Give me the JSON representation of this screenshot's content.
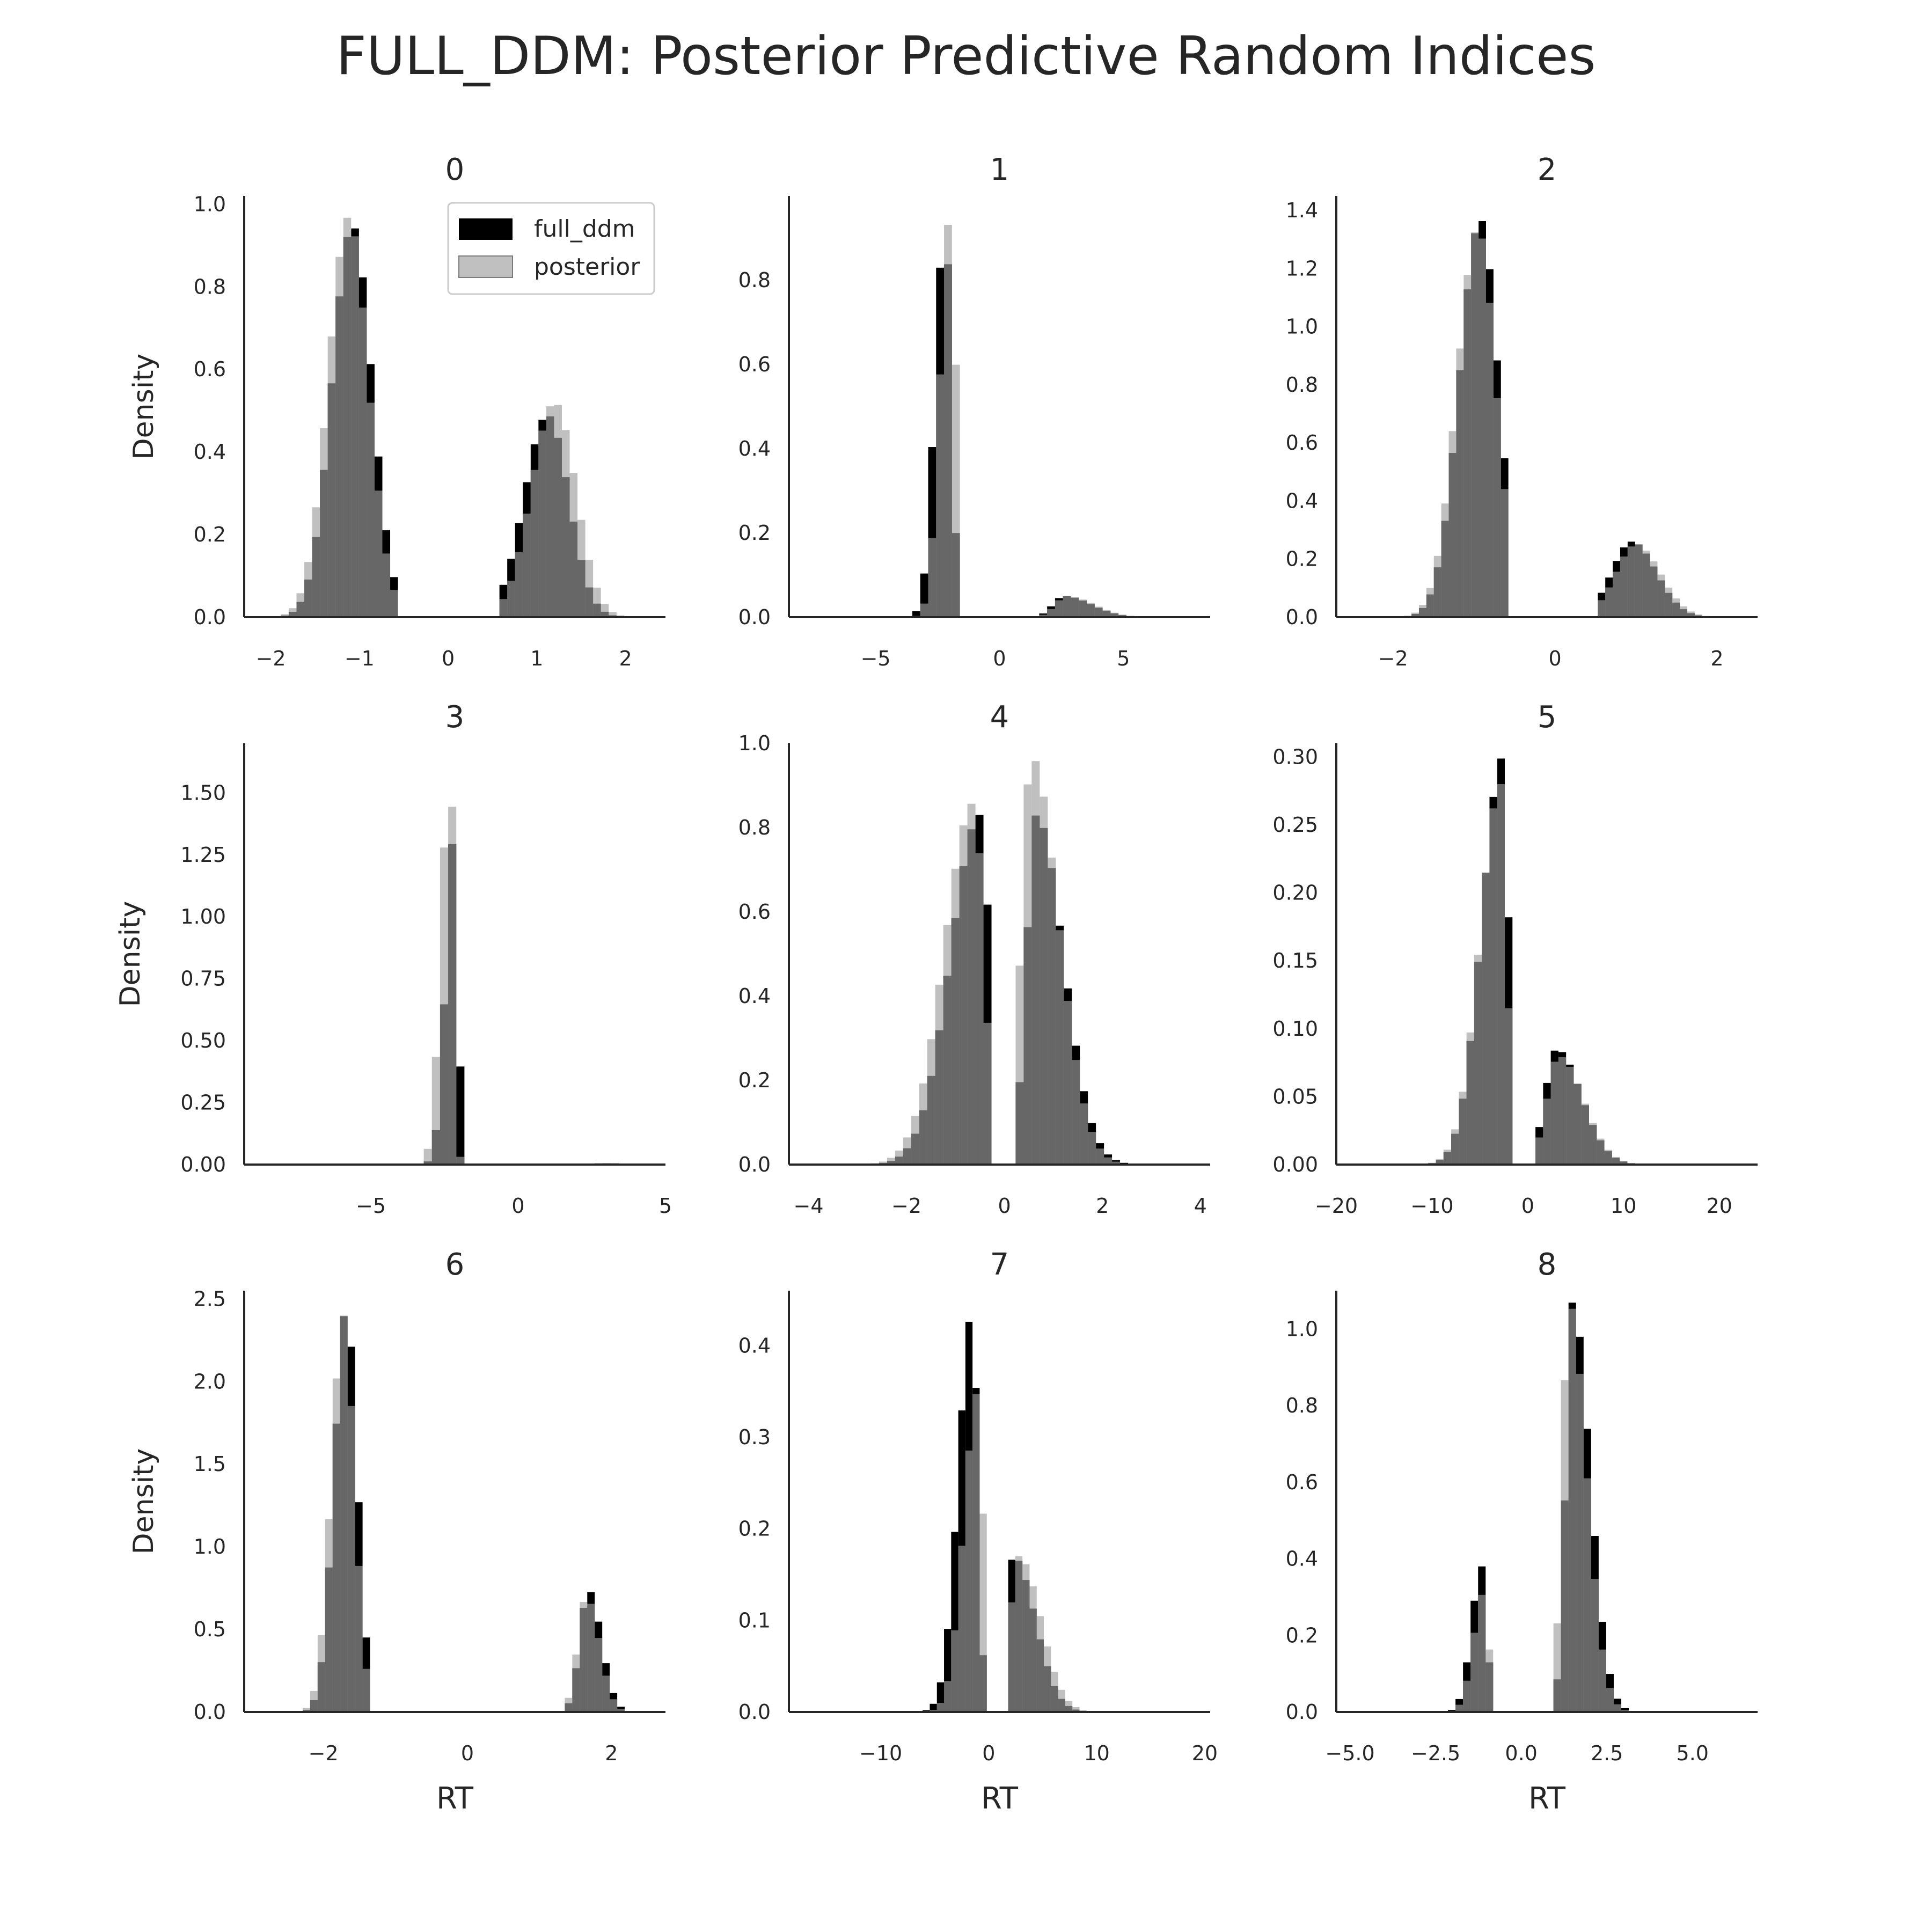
{
  "figure": {
    "title": "FULL_DDM: Posterior Predictive Random Indices",
    "legend": {
      "placement": "top-right of panel 0",
      "entries": [
        "full_ddm",
        "posterior"
      ]
    },
    "colors": {
      "full_ddm": "#000000",
      "posterior": "#9e9e9e",
      "axis": "#262626",
      "background": "#ffffff"
    }
  },
  "chart_data": [
    {
      "type": "bar",
      "panel": "0",
      "title": "0",
      "ylabel": "Density",
      "xlabel": "",
      "grid": false,
      "xlim": [
        -2.3,
        2.45
      ],
      "ylim": [
        0,
        1.02
      ],
      "xticks": [
        -2,
        -1,
        0,
        1,
        2
      ],
      "xtick_labels": [
        "−2",
        "−1",
        "0",
        "1",
        "2"
      ],
      "yticks": [
        0,
        0.2,
        0.4,
        0.6,
        0.8,
        1.0
      ],
      "ytick_labels": [
        "0.0",
        "0.2",
        "0.4",
        "0.6",
        "0.8",
        "1.0"
      ],
      "series": [
        {
          "name": "full_ddm",
          "peaks": [
            {
              "center": -1.08,
              "sl": 0.23,
              "sr": 0.22,
              "height": 0.95,
              "min": -2.15,
              "max": -0.6
            },
            {
              "center": 1.12,
              "sl": 0.26,
              "sr": 0.24,
              "height": 0.49,
              "min": 0.6,
              "max": 2.25
            }
          ]
        },
        {
          "name": "posterior",
          "peaks": [
            {
              "center": -1.12,
              "sl": 0.23,
              "sr": 0.22,
              "height": 0.97,
              "min": -2.15,
              "max": -0.6
            },
            {
              "center": 1.2,
              "sl": 0.26,
              "sr": 0.24,
              "height": 0.52,
              "min": 0.6,
              "max": 2.25
            }
          ]
        }
      ]
    },
    {
      "type": "bar",
      "panel": "1",
      "title": "1",
      "ylabel": "",
      "xlabel": "",
      "grid": false,
      "xlim": [
        -8.5,
        8.5
      ],
      "ylim": [
        0,
        1.0
      ],
      "xticks": [
        -5,
        0,
        5
      ],
      "xtick_labels": [
        "−5",
        "0",
        "5"
      ],
      "yticks": [
        0,
        0.2,
        0.4,
        0.6,
        0.8
      ],
      "ytick_labels": [
        "0.0",
        "0.2",
        "0.4",
        "0.6",
        "0.8"
      ],
      "series": [
        {
          "name": "full_ddm",
          "peaks": [
            {
              "center": -2.2,
              "sl": 0.4,
              "sr": 0.25,
              "height": 0.94,
              "min": -8.0,
              "max": -1.6
            },
            {
              "center": 2.6,
              "sl": 0.45,
              "sr": 1.1,
              "height": 0.05,
              "min": 1.6,
              "max": 8.0
            }
          ]
        },
        {
          "name": "posterior",
          "peaks": [
            {
              "center": -2.0,
              "sl": 0.4,
              "sr": 0.25,
              "height": 0.95,
              "min": -8.0,
              "max": -1.6
            },
            {
              "center": 2.7,
              "sl": 0.45,
              "sr": 1.1,
              "height": 0.05,
              "min": 1.6,
              "max": 8.0
            }
          ]
        }
      ]
    },
    {
      "type": "bar",
      "panel": "2",
      "title": "2",
      "ylabel": "",
      "xlabel": "",
      "grid": false,
      "xlim": [
        -2.7,
        2.5
      ],
      "ylim": [
        0,
        1.45
      ],
      "xticks": [
        -2,
        0,
        2
      ],
      "xtick_labels": [
        "−2",
        "0",
        "2"
      ],
      "yticks": [
        0,
        0.2,
        0.4,
        0.6,
        0.8,
        1.0,
        1.2,
        1.4
      ],
      "ytick_labels": [
        "0.0",
        "0.2",
        "0.4",
        "0.6",
        "0.8",
        "1.0",
        "1.2",
        "1.4"
      ],
      "series": [
        {
          "name": "full_ddm",
          "peaks": [
            {
              "center": -0.92,
              "sl": 0.26,
              "sr": 0.22,
              "height": 1.37,
              "min": -2.6,
              "max": -0.55
            },
            {
              "center": 0.95,
              "sl": 0.25,
              "sr": 0.3,
              "height": 0.26,
              "min": 0.5,
              "max": 2.0
            }
          ]
        },
        {
          "name": "posterior",
          "peaks": [
            {
              "center": -0.95,
              "sl": 0.26,
              "sr": 0.22,
              "height": 1.34,
              "min": -2.6,
              "max": -0.55
            },
            {
              "center": 1.0,
              "sl": 0.25,
              "sr": 0.3,
              "height": 0.25,
              "min": 0.5,
              "max": 2.0
            }
          ]
        }
      ]
    },
    {
      "type": "bar",
      "panel": "3",
      "title": "3",
      "ylabel": "Density",
      "xlabel": "",
      "grid": false,
      "xlim": [
        -9.3,
        5.0
      ],
      "ylim": [
        0,
        1.7
      ],
      "xticks": [
        -5,
        0,
        5
      ],
      "xtick_labels": [
        "−5",
        "0",
        "5"
      ],
      "yticks": [
        0,
        0.25,
        0.5,
        0.75,
        1.0,
        1.25,
        1.5
      ],
      "ytick_labels": [
        "0.00",
        "0.25",
        "0.50",
        "0.75",
        "1.00",
        "1.25",
        "1.50"
      ],
      "series": [
        {
          "name": "full_ddm",
          "peaks": [
            {
              "center": -2.15,
              "sl": 0.3,
              "sr": 0.12,
              "height": 1.35,
              "min": -9.0,
              "max": -1.8
            },
            {
              "center": 3.0,
              "sl": 0.8,
              "sr": 1.0,
              "height": 0.005,
              "min": 1.8,
              "max": 4.8
            }
          ]
        },
        {
          "name": "posterior",
          "peaks": [
            {
              "center": -2.3,
              "sl": 0.3,
              "sr": 0.12,
              "height": 1.65,
              "min": -9.0,
              "max": -1.8
            },
            {
              "center": 3.0,
              "sl": 0.8,
              "sr": 1.0,
              "height": 0.005,
              "min": 1.8,
              "max": 4.8
            }
          ]
        }
      ]
    },
    {
      "type": "bar",
      "panel": "4",
      "title": "4",
      "ylabel": "",
      "xlabel": "",
      "grid": false,
      "xlim": [
        -4.4,
        4.2
      ],
      "ylim": [
        0,
        1.0
      ],
      "xticks": [
        -4,
        -2,
        0,
        2,
        4
      ],
      "xtick_labels": [
        "−4",
        "−2",
        "0",
        "2",
        "4"
      ],
      "yticks": [
        0,
        0.2,
        0.4,
        0.6,
        0.8,
        1.0
      ],
      "ytick_labels": [
        "0.0",
        "0.2",
        "0.4",
        "0.6",
        "0.8",
        "1.0"
      ],
      "series": [
        {
          "name": "full_ddm",
          "peaks": [
            {
              "center": -0.5,
              "sl": 0.6,
              "sr": 0.2,
              "height": 0.83,
              "min": -4.2,
              "max": -0.3
            },
            {
              "center": 0.65,
              "sl": 0.2,
              "sr": 0.55,
              "height": 0.83,
              "min": 0.3,
              "max": 4.0
            }
          ]
        },
        {
          "name": "posterior",
          "peaks": [
            {
              "center": -0.62,
              "sl": 0.6,
              "sr": 0.2,
              "height": 0.86,
              "min": -4.2,
              "max": -0.3
            },
            {
              "center": 0.55,
              "sl": 0.2,
              "sr": 0.55,
              "height": 0.97,
              "min": 0.3,
              "max": 4.0
            }
          ]
        }
      ]
    },
    {
      "type": "bar",
      "panel": "5",
      "title": "5",
      "ylabel": "",
      "xlabel": "",
      "grid": false,
      "xlim": [
        -20,
        24
      ],
      "ylim": [
        0,
        0.31
      ],
      "xticks": [
        -20,
        -10,
        0,
        10,
        20
      ],
      "xtick_labels": [
        "−20",
        "−10",
        "0",
        "10",
        "20"
      ],
      "yticks": [
        0,
        0.05,
        0.1,
        0.15,
        0.2,
        0.25,
        0.3
      ],
      "ytick_labels": [
        "0.00",
        "0.05",
        "0.10",
        "0.15",
        "0.20",
        "0.25",
        "0.30"
      ],
      "series": [
        {
          "name": "full_ddm",
          "peaks": [
            {
              "center": -2.6,
              "sl": 2.2,
              "sr": 0.6,
              "height": 0.3,
              "min": -20,
              "max": -1.2
            },
            {
              "center": 3.0,
              "sl": 1.2,
              "sr": 2.6,
              "height": 0.085,
              "min": 1.2,
              "max": 20
            }
          ]
        },
        {
          "name": "posterior",
          "peaks": [
            {
              "center": -2.8,
              "sl": 2.2,
              "sr": 0.6,
              "height": 0.28,
              "min": -20,
              "max": -1.2
            },
            {
              "center": 3.2,
              "sl": 1.2,
              "sr": 2.6,
              "height": 0.08,
              "min": 1.2,
              "max": 20
            }
          ]
        }
      ]
    },
    {
      "type": "bar",
      "panel": "6",
      "title": "6",
      "ylabel": "Density",
      "xlabel": "RT",
      "grid": false,
      "xlim": [
        -3.1,
        2.75
      ],
      "ylim": [
        0,
        2.55
      ],
      "xticks": [
        -2,
        0,
        2
      ],
      "xtick_labels": [
        "−2",
        "0",
        "2"
      ],
      "yticks": [
        0,
        0.5,
        1.0,
        1.5,
        2.0,
        2.5
      ],
      "ytick_labels": [
        "0.0",
        "0.5",
        "1.0",
        "1.5",
        "2.0",
        "2.5"
      ],
      "series": [
        {
          "name": "full_ddm",
          "peaks": [
            {
              "center": -1.68,
              "sl": 0.17,
              "sr": 0.15,
              "height": 2.45,
              "min": -2.6,
              "max": -1.4
            },
            {
              "center": 1.68,
              "sl": 0.12,
              "sr": 0.18,
              "height": 0.74,
              "min": 1.4,
              "max": 2.6
            }
          ]
        },
        {
          "name": "posterior",
          "peaks": [
            {
              "center": -1.72,
              "sl": 0.17,
              "sr": 0.15,
              "height": 2.4,
              "min": -2.6,
              "max": -1.4
            },
            {
              "center": 1.65,
              "sl": 0.12,
              "sr": 0.18,
              "height": 0.7,
              "min": 1.4,
              "max": 2.6
            }
          ]
        }
      ]
    },
    {
      "type": "bar",
      "panel": "7",
      "title": "7",
      "ylabel": "",
      "xlabel": "RT",
      "grid": false,
      "xlim": [
        -18.5,
        20.5
      ],
      "ylim": [
        0,
        0.46
      ],
      "xticks": [
        -10,
        0,
        10,
        20
      ],
      "xtick_labels": [
        "−10",
        "0",
        "10",
        "20"
      ],
      "yticks": [
        0,
        0.1,
        0.2,
        0.3,
        0.4
      ],
      "ytick_labels": [
        "0.0",
        "0.1",
        "0.2",
        "0.3",
        "0.4"
      ],
      "series": [
        {
          "name": "full_ddm",
          "peaks": [
            {
              "center": -1.5,
              "sl": 1.3,
              "sr": 0.5,
              "height": 0.44,
              "min": -18,
              "max": -0.5
            },
            {
              "center": 2.3,
              "sl": 0.8,
              "sr": 2.0,
              "height": 0.17,
              "min": 1.5,
              "max": 15
            }
          ]
        },
        {
          "name": "posterior",
          "peaks": [
            {
              "center": -1.0,
              "sl": 1.3,
              "sr": 0.5,
              "height": 0.35,
              "min": -18,
              "max": -0.5
            },
            {
              "center": 2.8,
              "sl": 0.8,
              "sr": 2.0,
              "height": 0.17,
              "min": 1.5,
              "max": 15
            }
          ]
        }
      ]
    },
    {
      "type": "bar",
      "panel": "8",
      "title": "8",
      "ylabel": "",
      "xlabel": "RT",
      "grid": false,
      "xlim": [
        -5.4,
        6.9
      ],
      "ylim": [
        0,
        1.1
      ],
      "xticks": [
        -5,
        -2.5,
        0,
        2.5,
        5
      ],
      "xtick_labels": [
        "−5.0",
        "−2.5",
        "0.0",
        "2.5",
        "5.0"
      ],
      "yticks": [
        0,
        0.2,
        0.4,
        0.6,
        0.8,
        1.0
      ],
      "ytick_labels": [
        "0.0",
        "0.2",
        "0.4",
        "0.6",
        "0.8",
        "1.0"
      ],
      "series": [
        {
          "name": "full_ddm",
          "peaks": [
            {
              "center": -1.15,
              "sl": 0.3,
              "sr": 0.15,
              "height": 0.38,
              "min": -5.0,
              "max": -0.75
            },
            {
              "center": 1.5,
              "sl": 0.2,
              "sr": 0.5,
              "height": 1.07,
              "min": 1.0,
              "max": 6.0
            }
          ]
        },
        {
          "name": "posterior",
          "peaks": [
            {
              "center": -1.1,
              "sl": 0.3,
              "sr": 0.15,
              "height": 0.31,
              "min": -5.0,
              "max": -0.75
            },
            {
              "center": 1.4,
              "sl": 0.2,
              "sr": 0.5,
              "height": 1.07,
              "min": 1.0,
              "max": 6.0
            }
          ]
        }
      ]
    }
  ]
}
